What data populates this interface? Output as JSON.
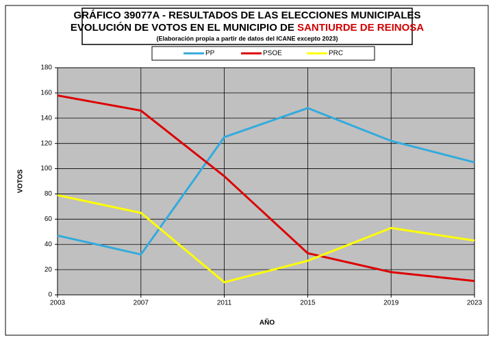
{
  "chart_data": {
    "type": "line",
    "title": "GRÁFICO 39077A - RESULTADOS DE LAS ELECCIONES MUNICIPALES",
    "subtitle": "EVOLUCIÓN DE VOTOS EN EL MUNICIPIO DE",
    "subtitle_place": "SANTIURDE DE REINOSA",
    "source": "(Elaboración propia a partir de datos del ICANE excepto 2023)",
    "y_label": "VOTOS",
    "x_label": "AÑO",
    "categories": [
      "2003",
      "2007",
      "2011",
      "2015",
      "2019",
      "2023"
    ],
    "series": [
      {
        "name": "PP",
        "color": "#33aadd",
        "values": [
          47,
          32,
          125,
          148,
          122,
          105
        ]
      },
      {
        "name": "PSOE",
        "color": "#dd0000",
        "values": [
          158,
          146,
          94,
          33,
          18,
          11
        ]
      },
      {
        "name": "PRC",
        "color": "#ffff00",
        "values": [
          79,
          65,
          10,
          27,
          53,
          43
        ]
      }
    ],
    "ylim": [
      0,
      180
    ],
    "yticks": [
      0,
      20,
      40,
      60,
      80,
      100,
      120,
      140,
      160,
      180
    ],
    "grid": true,
    "plot_background": "#c0c0c0"
  }
}
